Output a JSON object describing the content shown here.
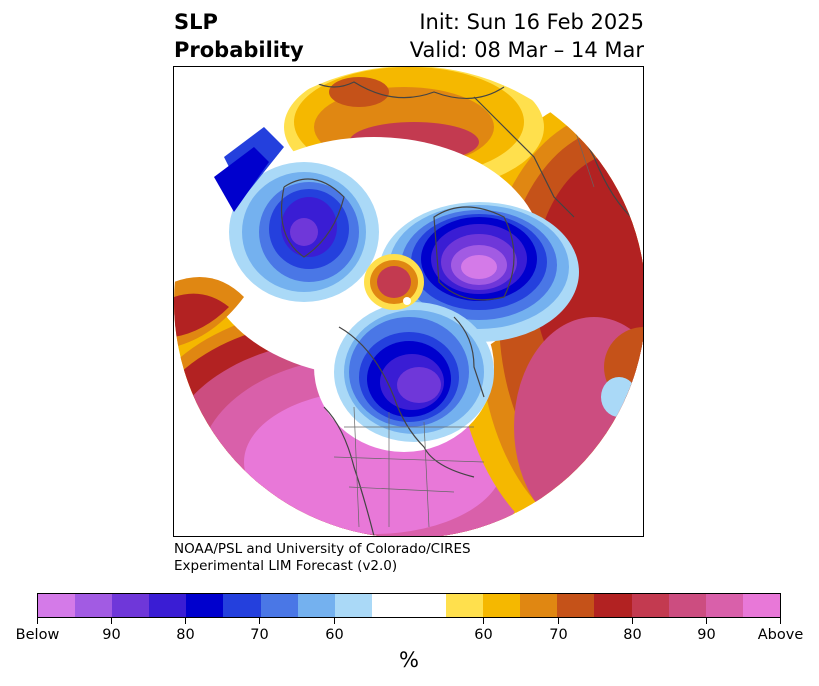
{
  "header": {
    "variable": "SLP",
    "product": "Probability",
    "init": "Init: Sun 16 Feb 2025",
    "valid": "Valid: 08 Mar – 14 Mar"
  },
  "credit": {
    "line1": "NOAA/PSL and University of Colorado/CIRES",
    "line2": "Experimental LIM Forecast (v2.0)"
  },
  "colorbar": {
    "colors": [
      "#d47ae8",
      "#a25be3",
      "#6f37d9",
      "#3a1dd4",
      "#0000cd",
      "#2440dd",
      "#4a77e6",
      "#74b1ef",
      "#aad9f7",
      "#ffffff",
      "#ffffff",
      "#ffe04d",
      "#f5b800",
      "#e08712",
      "#c55219",
      "#b22222",
      "#c33a50",
      "#cc4d80",
      "#d960aa",
      "#e878d8"
    ],
    "labels": [
      "Below",
      "90",
      "80",
      "70",
      "60",
      "60",
      "70",
      "80",
      "90",
      "Above"
    ],
    "unit": "%"
  },
  "map": {
    "features": [
      "below-normal-center-greenland",
      "below-normal-center-siberia",
      "below-normal-center-canada",
      "above-normal-north-pacific",
      "above-normal-europe",
      "above-normal-atlantic"
    ]
  }
}
